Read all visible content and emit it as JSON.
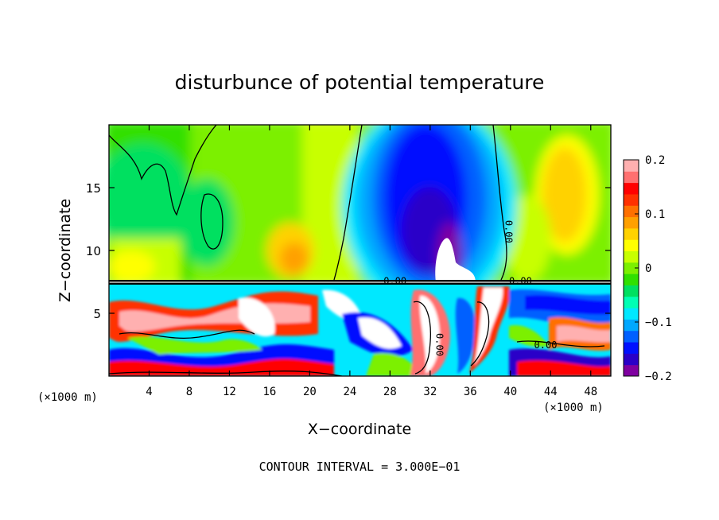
{
  "chart_data": {
    "type": "heatmap",
    "title": "disturbunce of potential temperature",
    "xlabel": "X−coordinate",
    "ylabel": "Z−coordinate",
    "x_unit_left": "(×1000 m)",
    "x_unit_right": "(×1000 m)",
    "xlim": [
      0,
      50
    ],
    "ylim": [
      0,
      20
    ],
    "x_ticks": [
      4,
      8,
      12,
      16,
      20,
      24,
      28,
      32,
      36,
      40,
      44,
      48
    ],
    "y_ticks": [
      5,
      10,
      15
    ],
    "colorbar": {
      "range": [
        -0.2,
        0.2
      ],
      "ticks": [
        {
          "value": 0.2,
          "label": "0.2"
        },
        {
          "value": 0.1,
          "label": "0.1"
        },
        {
          "value": 0.0,
          "label": "0"
        },
        {
          "value": -0.1,
          "label": "−0.1"
        },
        {
          "value": -0.2,
          "label": "−0.2"
        }
      ],
      "colors": [
        "#7f00a0",
        "#2a00c8",
        "#0010ff",
        "#0060ff",
        "#00a8ff",
        "#00e8ff",
        "#00ffb4",
        "#00e060",
        "#30e000",
        "#7cf000",
        "#c8ff00",
        "#ffff00",
        "#ffd200",
        "#ffa000",
        "#ff7000",
        "#ff3000",
        "#ff0000",
        "#ff7070",
        "#ffb0b0"
      ]
    },
    "contour_labels": [
      {
        "text": "0.00",
        "x": 39.5,
        "z": 11.5,
        "rotate": 90
      },
      {
        "text": "0.00",
        "x": 41.0,
        "z": 7.3,
        "rotate": 0
      },
      {
        "text": "0.00",
        "x": 28.5,
        "z": 7.3,
        "rotate": 0
      },
      {
        "text": "0.00",
        "x": 43.5,
        "z": 2.2,
        "rotate": 0
      },
      {
        "text": "0.00",
        "x": 32.6,
        "z": 2.5,
        "rotate": 90
      }
    ],
    "annotation": "CONTOUR INTERVAL = 3.000E−01",
    "grid": false
  }
}
